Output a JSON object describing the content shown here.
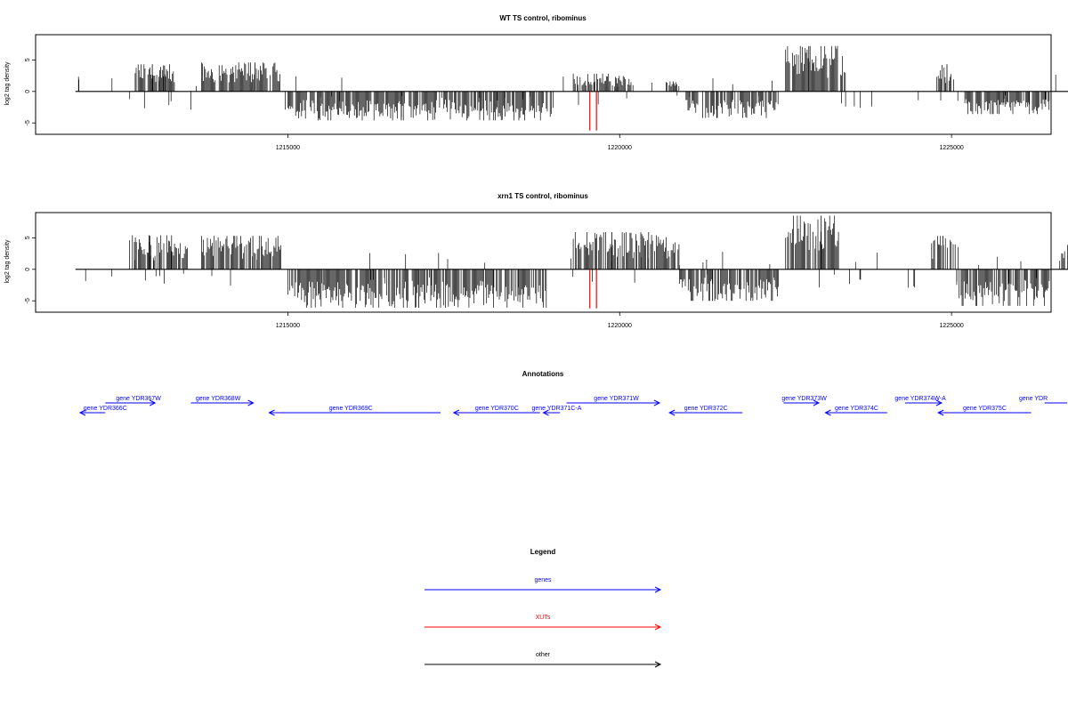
{
  "chart_data": [
    {
      "type": "bar",
      "title": "WT TS control, ribominus",
      "ylabel": "log2 tag density",
      "xlabel": "",
      "xlim": [
        1211200,
        1226500
      ],
      "ylim": [
        -6.8,
        9
      ],
      "xticks": [
        1215000,
        1220000,
        1225000
      ],
      "xtick_labels": [
        "1215000",
        "1220000",
        "1225000"
      ],
      "yticks": [
        -5,
        0,
        5
      ],
      "ytick_labels": [
        "-5",
        "0",
        "5"
      ],
      "grid": false,
      "baseline_range": [
        1211800,
        1227200
      ],
      "positive_clusters": [
        {
          "start": 1212700,
          "end": 1213300,
          "peak": 4.3
        },
        {
          "start": 1213700,
          "end": 1214900,
          "peak": 4.6
        },
        {
          "start": 1219300,
          "end": 1220200,
          "peak": 2.8
        },
        {
          "start": 1220700,
          "end": 1220900,
          "peak": 1.6
        },
        {
          "start": 1222500,
          "end": 1223400,
          "peak": 7.2
        },
        {
          "start": 1224800,
          "end": 1225000,
          "peak": 4.3
        },
        {
          "start": 1226800,
          "end": 1227200,
          "peak": 2.8
        }
      ],
      "negative_clusters": [
        {
          "start": 1215000,
          "end": 1219000,
          "peak": -4.6
        },
        {
          "start": 1221000,
          "end": 1222400,
          "peak": -4.2
        },
        {
          "start": 1225200,
          "end": 1226500,
          "peak": -3.6
        }
      ],
      "markers": [
        {
          "x": 1219550,
          "ymin": -6.2,
          "ymax": 0,
          "color": "#ff0000"
        },
        {
          "x": 1219650,
          "ymin": -6.2,
          "ymax": 0,
          "color": "#ff0000"
        }
      ]
    },
    {
      "type": "bar",
      "title": "xrn1 TS control, ribominus",
      "ylabel": "log2 tag density",
      "xlabel": "",
      "xlim": [
        1211200,
        1226500
      ],
      "ylim": [
        -6.8,
        9
      ],
      "xticks": [
        1215000,
        1220000,
        1225000
      ],
      "xtick_labels": [
        "1215000",
        "1220000",
        "1225000"
      ],
      "yticks": [
        -5,
        0,
        5
      ],
      "ytick_labels": [
        "-5",
        "0",
        "5"
      ],
      "grid": false,
      "baseline_range": [
        1211800,
        1227200
      ],
      "positive_clusters": [
        {
          "start": 1212600,
          "end": 1213500,
          "peak": 5.4
        },
        {
          "start": 1213700,
          "end": 1214900,
          "peak": 5.3
        },
        {
          "start": 1219300,
          "end": 1220900,
          "peak": 5.9
        },
        {
          "start": 1222500,
          "end": 1223300,
          "peak": 8.5
        },
        {
          "start": 1224700,
          "end": 1225100,
          "peak": 5.3
        },
        {
          "start": 1226600,
          "end": 1227200,
          "peak": 4.1
        }
      ],
      "negative_clusters": [
        {
          "start": 1215000,
          "end": 1218900,
          "peak": -6.1
        },
        {
          "start": 1220900,
          "end": 1222400,
          "peak": -5.0
        },
        {
          "start": 1225100,
          "end": 1226500,
          "peak": -5.8
        }
      ],
      "markers": [
        {
          "x": 1219550,
          "ymin": -6.2,
          "ymax": 0,
          "color": "#ff0000"
        },
        {
          "x": 1219650,
          "ymin": -6.2,
          "ymax": 0,
          "color": "#ff0000"
        }
      ]
    }
  ],
  "annotations": {
    "title": "Annotations",
    "color": "#0000ff",
    "genes": [
      {
        "label": "gene YDR366C",
        "start": 1211870,
        "end": 1212250,
        "strand": "-",
        "row": 1,
        "label_x": 1212250
      },
      {
        "label": "gene YDR367W",
        "start": 1212250,
        "end": 1213000,
        "strand": "+",
        "row": 0,
        "label_x": 1212750
      },
      {
        "label": "gene YDR368W",
        "start": 1213540,
        "end": 1214480,
        "strand": "+",
        "row": 0,
        "label_x": 1213950
      },
      {
        "label": "gene YDR369C",
        "start": 1214720,
        "end": 1217300,
        "strand": "-",
        "row": 1,
        "label_x": 1215950
      },
      {
        "label": "gene YDR370C",
        "start": 1217500,
        "end": 1218800,
        "strand": "-",
        "row": 1,
        "label_x": 1218150
      },
      {
        "label": "gene YDR371C-A",
        "start": 1218850,
        "end": 1219100,
        "strand": "-",
        "row": 1,
        "label_x": 1219050
      },
      {
        "label": "gene YDR371W",
        "start": 1219200,
        "end": 1220600,
        "strand": "+",
        "row": 0,
        "label_x": 1219950
      },
      {
        "label": "gene YDR372C",
        "start": 1220750,
        "end": 1221850,
        "strand": "-",
        "row": 1,
        "label_x": 1221300
      },
      {
        "label": "gene YDR373W",
        "start": 1222470,
        "end": 1223000,
        "strand": "+",
        "row": 0,
        "label_x": 1222780
      },
      {
        "label": "gene YDR374C",
        "start": 1223100,
        "end": 1224030,
        "strand": "-",
        "row": 1,
        "label_x": 1223570
      },
      {
        "label": "gene YDR374W-A",
        "start": 1224300,
        "end": 1224850,
        "strand": "+",
        "row": 0,
        "label_x": 1224530
      },
      {
        "label": "gene YDR375C",
        "start": 1224800,
        "end": 1226200,
        "strand": "-",
        "row": 1,
        "label_x": 1225500
      },
      {
        "label": "gene YDR",
        "start": 1226400,
        "end": 1227200,
        "strand": "+",
        "row": 0,
        "label_x": 1227000
      }
    ]
  },
  "legend": {
    "title": "Legend",
    "items": [
      {
        "label": "genes",
        "color": "#0000ff"
      },
      {
        "label": "XUTs",
        "color": "#ff0000"
      },
      {
        "label": "other",
        "color": "#000000"
      }
    ]
  }
}
